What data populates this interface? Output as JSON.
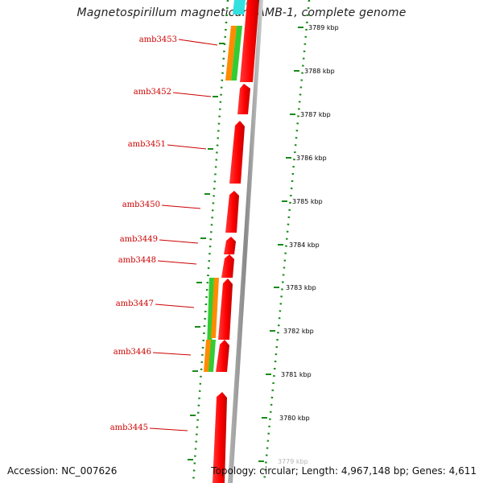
{
  "title": "Magnetospirillum magneticum AMB-1, complete genome",
  "scale_labels": [
    "3789 kbp",
    "3788 kbp",
    "3787 kbp",
    "3786 kbp",
    "3785 kbp",
    "3784 kbp",
    "3783 kbp",
    "3782 kbp",
    "3781 kbp",
    "3780 kbp",
    "3779 kbp"
  ],
  "gene_labels": [
    "amb3453",
    "amb3452",
    "amb3451",
    "amb3450",
    "amb3449",
    "amb3448",
    "amb3447",
    "amb3446",
    "amb3445"
  ],
  "footer": {
    "accession_label": "Accession:",
    "accession": "NC_007626",
    "topology_label": "Topology:",
    "topology": "circular",
    "length_label": "Length:",
    "length": "4,967,148 bp",
    "genes_label": "Genes:",
    "genes": "4,611"
  },
  "colors": {
    "gene": "#ff0000",
    "gene_dark": "#b00000",
    "backbone": "#8c8c8c",
    "dotted_ring": "#1a8a1a",
    "label": "#cc0000",
    "cog_orange": "#ff8c00",
    "cog_green": "#33cc33",
    "cog_cyan": "#33e0e0"
  }
}
